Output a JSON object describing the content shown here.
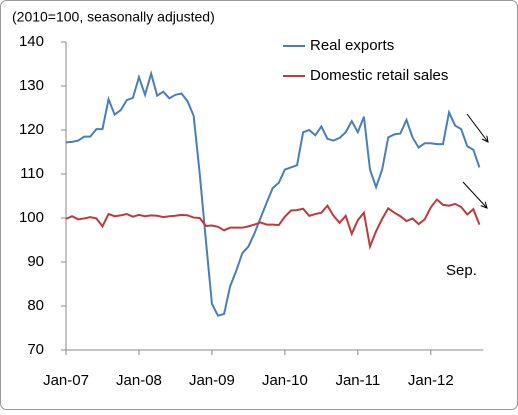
{
  "chart_data": {
    "type": "line",
    "subtitle": "(2010=100, seasonally adjusted)",
    "categories": [
      "Jan-07",
      null,
      null,
      null,
      null,
      null,
      null,
      null,
      null,
      null,
      null,
      null,
      "Jan-08",
      null,
      null,
      null,
      null,
      null,
      null,
      null,
      null,
      null,
      null,
      null,
      "Jan-09",
      null,
      null,
      null,
      null,
      null,
      null,
      null,
      null,
      null,
      null,
      null,
      "Jan-10",
      null,
      null,
      null,
      null,
      null,
      null,
      null,
      null,
      null,
      null,
      null,
      "Jan-11",
      null,
      null,
      null,
      null,
      null,
      null,
      null,
      null,
      null,
      null,
      null,
      "Jan-12",
      null,
      null,
      null,
      null,
      null,
      null,
      null,
      null
    ],
    "series": [
      {
        "name": "Real exports",
        "color": "#4a7ebb",
        "values": [
          117.2,
          117.3,
          117.6,
          118.5,
          118.5,
          120.2,
          120.2,
          127,
          123.5,
          124.5,
          126.8,
          127.3,
          132,
          128,
          132.8,
          127.8,
          128.7,
          127.2,
          128,
          128.3,
          126.5,
          123.2,
          110,
          95,
          80.5,
          77.8,
          78.2,
          84.5,
          88,
          92,
          93.5,
          96.5,
          100,
          103.5,
          106.8,
          108,
          111,
          111.5,
          112,
          119.5,
          120,
          118.8,
          120.8,
          118,
          117.6,
          118.2,
          119.5,
          122,
          119.5,
          123,
          111,
          107,
          111,
          118.3,
          119,
          119.2,
          122.3,
          118.3,
          116,
          117,
          117,
          116.8,
          116.8,
          124,
          121,
          120.2,
          116.3,
          115.5,
          111.5
        ]
      },
      {
        "name": "Domestic retail sales",
        "color": "#be3b3b",
        "values": [
          99.8,
          100.4,
          99.7,
          99.9,
          100.2,
          99.9,
          98.1,
          100.9,
          100.4,
          100.6,
          100.9,
          100.3,
          100.7,
          100.4,
          100.6,
          100.5,
          100.2,
          100.4,
          100.5,
          100.7,
          100.6,
          100.1,
          100,
          98.2,
          98.3,
          98,
          97.2,
          97.8,
          97.8,
          97.8,
          98.1,
          98.5,
          99,
          98.5,
          98.5,
          98.4,
          100.3,
          101.7,
          101.8,
          102.1,
          100.5,
          100.9,
          101.2,
          102.8,
          100.5,
          98.9,
          100.5,
          96.4,
          99.5,
          101.2,
          93.5,
          97,
          99.8,
          102.2,
          101.2,
          100.4,
          99.3,
          99.9,
          98.6,
          99.7,
          102.4,
          104.2,
          103,
          102.8,
          103.2,
          102.5,
          100.8,
          102,
          98.5
        ]
      }
    ],
    "ylim": [
      70,
      140
    ],
    "yticks": [
      70,
      80,
      90,
      100,
      110,
      120,
      130,
      140
    ],
    "legend": "upper right",
    "annotations": [
      "Sep."
    ]
  }
}
